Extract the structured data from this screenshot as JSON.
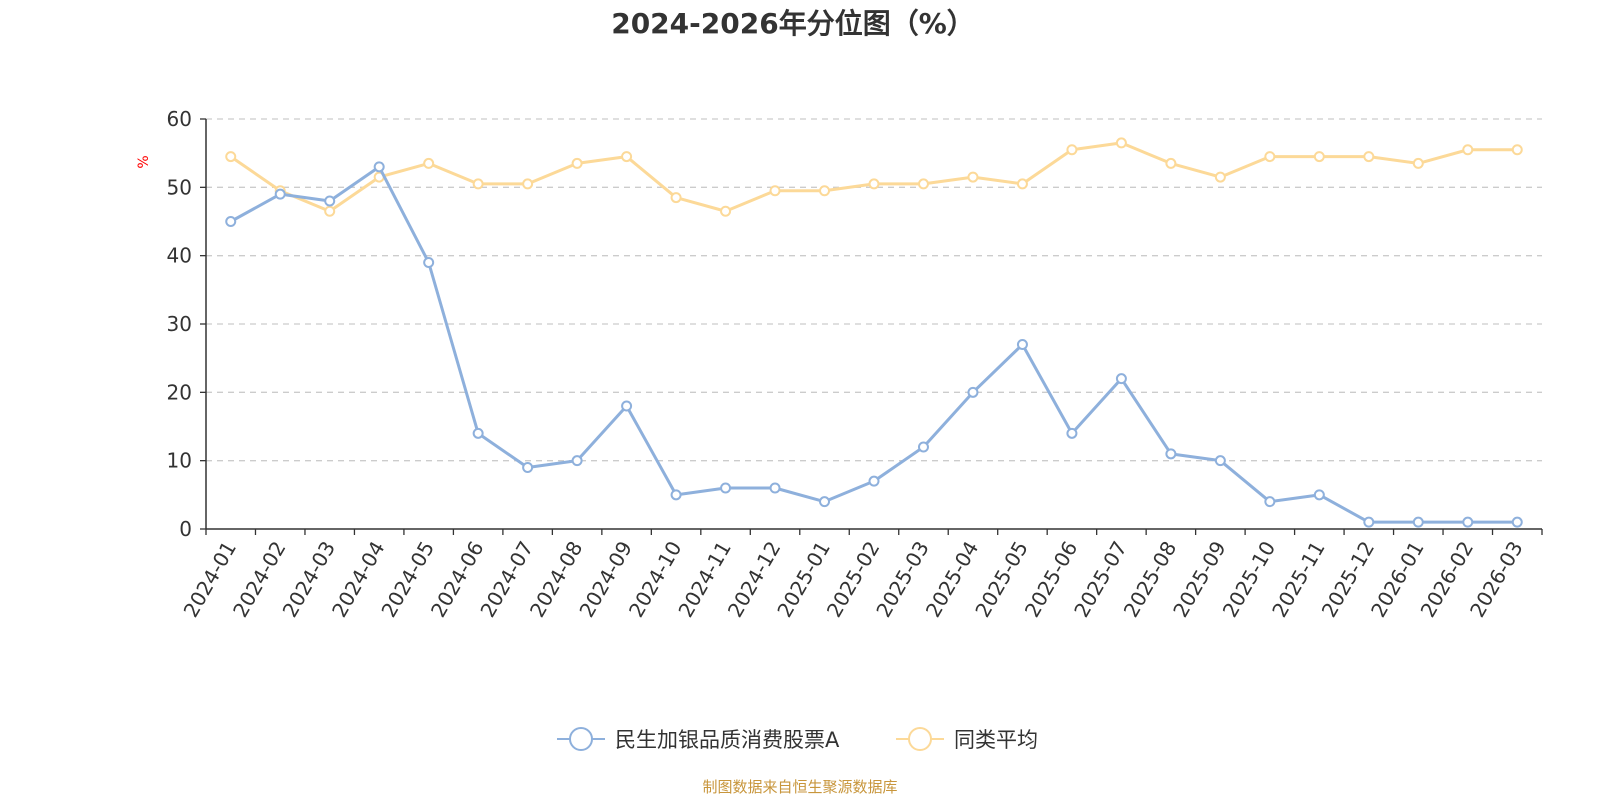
{
  "chart_data": {
    "type": "line",
    "title": "2024-2026年分位图（%）",
    "ylabel": "%",
    "xlabel": "",
    "ylim": [
      0,
      60
    ],
    "yticks": [
      0,
      10,
      20,
      30,
      40,
      50,
      60
    ],
    "grid": true,
    "legend_position": "bottom",
    "categories": [
      "2024-01",
      "2024-02",
      "2024-03",
      "2024-04",
      "2024-05",
      "2024-06",
      "2024-07",
      "2024-08",
      "2024-09",
      "2024-10",
      "2024-11",
      "2024-12",
      "2025-01",
      "2025-02",
      "2025-03",
      "2025-04",
      "2025-05",
      "2025-06",
      "2025-07",
      "2025-08",
      "2025-09",
      "2025-10",
      "2025-11",
      "2025-12",
      "2026-01",
      "2026-02",
      "2026-03"
    ],
    "series": [
      {
        "name": "民生加银品质消费股票A",
        "color": "#8eb0dc",
        "values": [
          45,
          49,
          48,
          53,
          39,
          14,
          9,
          10,
          18,
          5,
          6,
          6,
          4,
          7,
          12,
          20,
          27,
          14,
          22,
          11,
          10,
          4,
          5,
          1,
          1,
          1,
          1
        ]
      },
      {
        "name": "同类平均",
        "color": "#fcd998",
        "values": [
          54.5,
          49.5,
          46.5,
          51.5,
          53.5,
          50.5,
          50.5,
          53.5,
          54.5,
          48.5,
          46.5,
          49.5,
          49.5,
          50.5,
          50.5,
          51.5,
          50.5,
          55.5,
          56.5,
          53.5,
          51.5,
          54.5,
          54.5,
          54.5,
          53.5,
          55.5,
          55.5
        ]
      }
    ]
  },
  "source_text": "制图数据来自恒生聚源数据库"
}
